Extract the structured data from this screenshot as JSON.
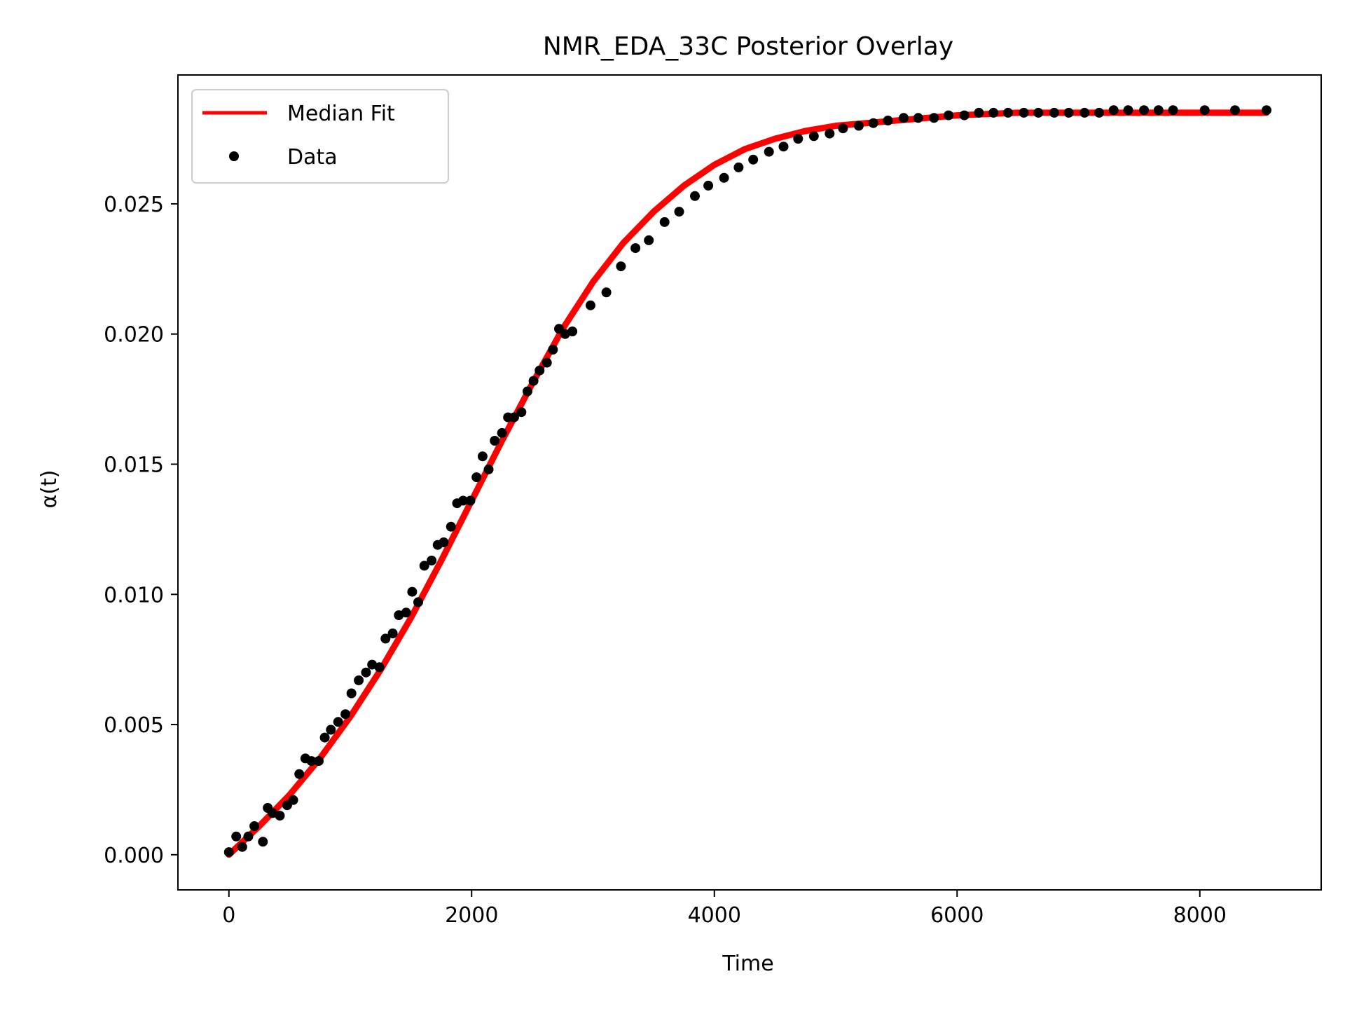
{
  "chart_data": {
    "type": "line",
    "title": "NMR_EDA_33C Posterior Overlay",
    "xlabel": "Time",
    "ylabel": "α(t)",
    "xlim": [
      -420,
      9000
    ],
    "ylim": [
      -0.00135,
      0.02995
    ],
    "xticks": [
      0,
      2000,
      4000,
      6000,
      8000
    ],
    "xtick_labels": [
      "0",
      "2000",
      "4000",
      "6000",
      "8000"
    ],
    "yticks": [
      0.0,
      0.005,
      0.01,
      0.015,
      0.02,
      0.025
    ],
    "ytick_labels": [
      "0.000",
      "0.005",
      "0.010",
      "0.015",
      "0.020",
      "0.025"
    ],
    "grid": false,
    "legend_position": "top-left",
    "series": [
      {
        "name": "Median Fit",
        "kind": "line",
        "color": "#ff0000",
        "x": [
          0,
          250,
          500,
          750,
          1000,
          1250,
          1500,
          1750,
          2000,
          2250,
          2500,
          2750,
          3000,
          3250,
          3500,
          3750,
          4000,
          4250,
          4500,
          4750,
          5000,
          5500,
          6000,
          6500,
          7000,
          7500,
          8000,
          8550
        ],
        "y": [
          0.0,
          0.0011,
          0.0023,
          0.0037,
          0.0053,
          0.0071,
          0.0091,
          0.0113,
          0.0136,
          0.0159,
          0.0181,
          0.0202,
          0.022,
          0.0235,
          0.0247,
          0.0257,
          0.0265,
          0.0271,
          0.0275,
          0.0278,
          0.028,
          0.0282,
          0.0284,
          0.0285,
          0.0285,
          0.0285,
          0.0285,
          0.0285
        ]
      },
      {
        "name": "Data",
        "kind": "scatter",
        "color": "#000000",
        "x": [
          0,
          60,
          110,
          160,
          210,
          280,
          320,
          360,
          420,
          480,
          530,
          580,
          630,
          680,
          740,
          790,
          840,
          900,
          960,
          1010,
          1070,
          1130,
          1180,
          1240,
          1290,
          1350,
          1400,
          1460,
          1510,
          1560,
          1610,
          1670,
          1720,
          1770,
          1830,
          1880,
          1930,
          1990,
          2040,
          2090,
          2140,
          2190,
          2250,
          2300,
          2350,
          2410,
          2460,
          2510,
          2560,
          2620,
          2670,
          2720,
          2770,
          2830,
          2980,
          3110,
          3230,
          3350,
          3460,
          3590,
          3710,
          3840,
          3950,
          4080,
          4200,
          4320,
          4450,
          4570,
          4690,
          4820,
          4950,
          5060,
          5190,
          5310,
          5430,
          5560,
          5680,
          5810,
          5930,
          6060,
          6180,
          6300,
          6420,
          6550,
          6670,
          6800,
          6920,
          7050,
          7170,
          7290,
          7410,
          7540,
          7660,
          7780,
          8040,
          8290,
          8550
        ],
        "y": [
          0.0001,
          0.0007,
          0.0003,
          0.0007,
          0.0011,
          0.0005,
          0.0018,
          0.0016,
          0.0015,
          0.0019,
          0.0021,
          0.0031,
          0.0037,
          0.0036,
          0.0036,
          0.0045,
          0.0048,
          0.0051,
          0.0054,
          0.0062,
          0.0067,
          0.007,
          0.0073,
          0.0072,
          0.0083,
          0.0085,
          0.0092,
          0.0093,
          0.0101,
          0.0097,
          0.0111,
          0.0113,
          0.0119,
          0.012,
          0.0126,
          0.0135,
          0.0136,
          0.0136,
          0.0145,
          0.0153,
          0.0148,
          0.0159,
          0.0162,
          0.0168,
          0.0168,
          0.017,
          0.0178,
          0.0182,
          0.0186,
          0.0189,
          0.0194,
          0.0202,
          0.02,
          0.0201,
          0.0211,
          0.0216,
          0.0226,
          0.0233,
          0.0236,
          0.0243,
          0.0247,
          0.0253,
          0.0257,
          0.026,
          0.0264,
          0.0267,
          0.027,
          0.0272,
          0.0275,
          0.0276,
          0.0277,
          0.0279,
          0.028,
          0.0281,
          0.0282,
          0.0283,
          0.0283,
          0.0283,
          0.0284,
          0.0284,
          0.0285,
          0.0285,
          0.0285,
          0.0285,
          0.0285,
          0.0285,
          0.0285,
          0.0285,
          0.0285,
          0.0286,
          0.0286,
          0.0286,
          0.0286,
          0.0286,
          0.0286,
          0.0286,
          0.0286
        ]
      }
    ]
  }
}
